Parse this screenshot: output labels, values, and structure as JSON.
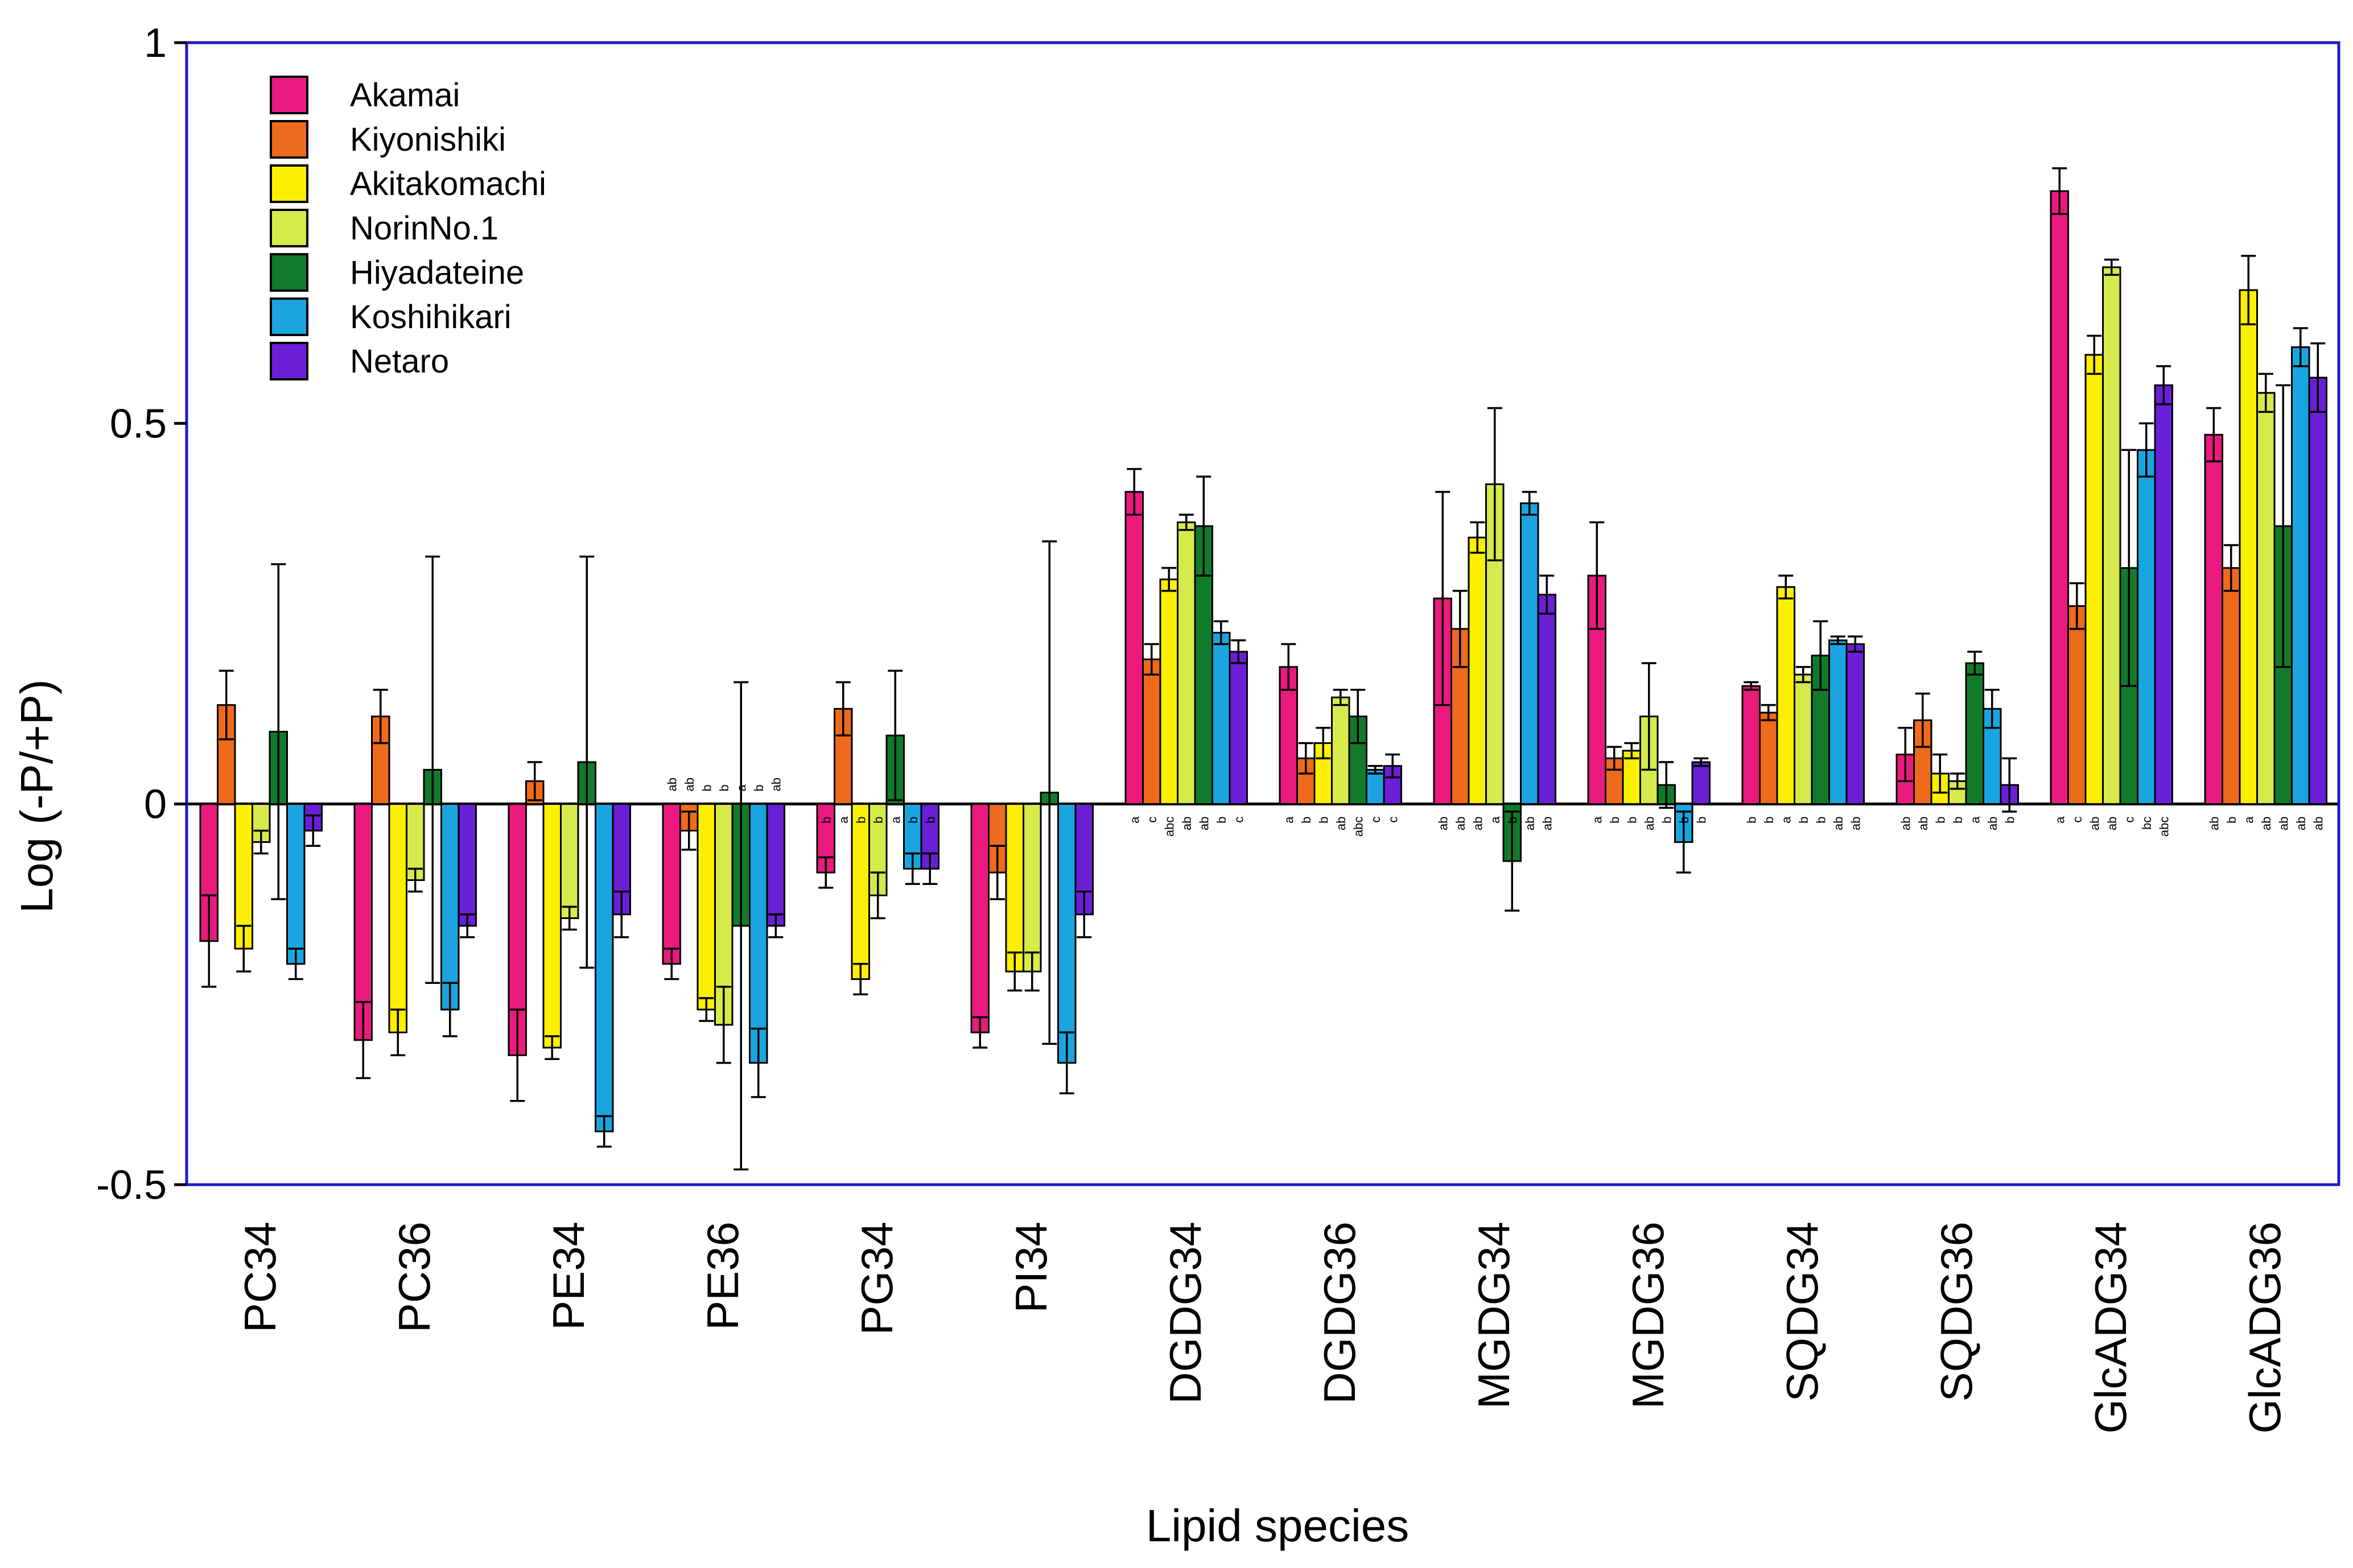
{
  "chart_data": {
    "type": "bar",
    "title": "",
    "xlabel": "Lipid species",
    "ylabel": "Log (-P/+P)",
    "ylim": [
      -0.5,
      1
    ],
    "yticks": [
      {
        "value": 1,
        "label": "1"
      },
      {
        "value": 0.5,
        "label": "0.5"
      },
      {
        "value": 0,
        "label": "0"
      },
      {
        "value": -0.5,
        "label": "-0.5"
      }
    ],
    "categories": [
      "PC34",
      "PC36",
      "PE34",
      "PE36",
      "PG34",
      "PI34",
      "DGDG34",
      "DGDG36",
      "MGDG34",
      "MGDG36",
      "SQDG34",
      "SQDG36",
      "GlcADG34",
      "GlcADG36"
    ],
    "legend_position": "top-left",
    "series": [
      {
        "name": "Akamai",
        "color": "#ea1a7f",
        "values": [
          -0.18,
          -0.31,
          -0.33,
          -0.21,
          -0.09,
          -0.3,
          0.41,
          0.18,
          0.27,
          0.3,
          0.155,
          0.065,
          0.805,
          0.485
        ],
        "errors": [
          0.06,
          0.05,
          0.06,
          0.02,
          0.02,
          0.02,
          0.03,
          0.03,
          0.14,
          0.07,
          0.005,
          0.035,
          0.03,
          0.035
        ]
      },
      {
        "name": "Kiyonishiki",
        "color": "#ee6a1c",
        "values": [
          0.13,
          0.115,
          0.03,
          -0.035,
          0.125,
          -0.09,
          0.19,
          0.06,
          0.23,
          0.06,
          0.12,
          0.11,
          0.26,
          0.31
        ],
        "errors": [
          0.045,
          0.035,
          0.025,
          0.025,
          0.035,
          0.035,
          0.02,
          0.02,
          0.05,
          0.015,
          0.01,
          0.035,
          0.03,
          0.03
        ]
      },
      {
        "name": "Akitakomachi",
        "color": "#fcf000",
        "values": [
          -0.19,
          -0.3,
          -0.32,
          -0.27,
          -0.23,
          -0.22,
          0.295,
          0.08,
          0.35,
          0.07,
          0.285,
          0.04,
          0.59,
          0.675
        ],
        "errors": [
          0.03,
          0.03,
          0.015,
          0.015,
          0.02,
          0.025,
          0.015,
          0.02,
          0.02,
          0.01,
          0.015,
          0.025,
          0.025,
          0.045
        ]
      },
      {
        "name": "NorinNo.1",
        "color": "#d6ea4c",
        "values": [
          -0.05,
          -0.1,
          -0.15,
          -0.29,
          -0.12,
          -0.22,
          0.37,
          0.14,
          0.42,
          0.115,
          0.17,
          0.03,
          0.705,
          0.54
        ],
        "errors": [
          0.015,
          0.015,
          0.015,
          0.05,
          0.03,
          0.025,
          0.01,
          0.01,
          0.1,
          0.07,
          0.01,
          0.01,
          0.01,
          0.025
        ]
      },
      {
        "name": "Hiyadateine",
        "color": "#127a2b",
        "values": [
          0.095,
          0.045,
          0.055,
          -0.16,
          0.09,
          0.015,
          0.365,
          0.115,
          -0.075,
          0.025,
          0.195,
          0.185,
          0.31,
          0.365
        ],
        "errors": [
          0.22,
          0.28,
          0.27,
          0.32,
          0.085,
          0.33,
          0.065,
          0.035,
          0.065,
          0.03,
          0.045,
          0.015,
          0.155,
          0.185
        ]
      },
      {
        "name": "Koshihikari",
        "color": "#1aa5e0",
        "values": [
          -0.21,
          -0.27,
          -0.43,
          -0.34,
          -0.085,
          -0.34,
          0.225,
          0.045,
          0.395,
          -0.05,
          0.215,
          0.125,
          0.465,
          0.6
        ],
        "errors": [
          0.02,
          0.035,
          0.02,
          0.045,
          0.02,
          0.04,
          0.015,
          0.005,
          0.015,
          0.04,
          0.005,
          0.025,
          0.035,
          0.025
        ]
      },
      {
        "name": "Netaro",
        "color": "#6a1fd6",
        "values": [
          -0.035,
          -0.16,
          -0.145,
          -0.16,
          -0.085,
          -0.145,
          0.2,
          0.05,
          0.275,
          0.055,
          0.21,
          0.025,
          0.55,
          0.56
        ],
        "errors": [
          0.02,
          0.015,
          0.03,
          0.015,
          0.02,
          0.03,
          0.015,
          0.015,
          0.025,
          0.005,
          0.01,
          0.035,
          0.025,
          0.045
        ]
      }
    ],
    "significance_letters": [
      null,
      null,
      null,
      [
        "ab",
        "ab",
        "b",
        "b",
        "a",
        "b",
        "ab"
      ],
      [
        "b",
        "a",
        "b",
        "b",
        "a",
        "b",
        "b"
      ],
      null,
      [
        "a",
        "c",
        "abc",
        "ab",
        "ab",
        "b",
        "c"
      ],
      [
        "a",
        "b",
        "b",
        "ab",
        "abc",
        "c",
        "c"
      ],
      [
        "ab",
        "ab",
        "ab",
        "a",
        "b",
        "ab",
        "ab"
      ],
      [
        "a",
        "b",
        "b",
        "ab",
        "b",
        "b",
        "b"
      ],
      [
        "b",
        "b",
        "a",
        "b",
        "b",
        "ab",
        "ab"
      ],
      [
        "ab",
        "ab",
        "b",
        "b",
        "a",
        "ab",
        "b"
      ],
      [
        "a",
        "c",
        "ab",
        "ab",
        "c",
        "bc",
        "abc"
      ],
      [
        "ab",
        "b",
        "a",
        "ab",
        "ab",
        "ab",
        "ab"
      ]
    ],
    "colors": {
      "frame": "#1a1ac8",
      "axis": "#000000"
    }
  }
}
